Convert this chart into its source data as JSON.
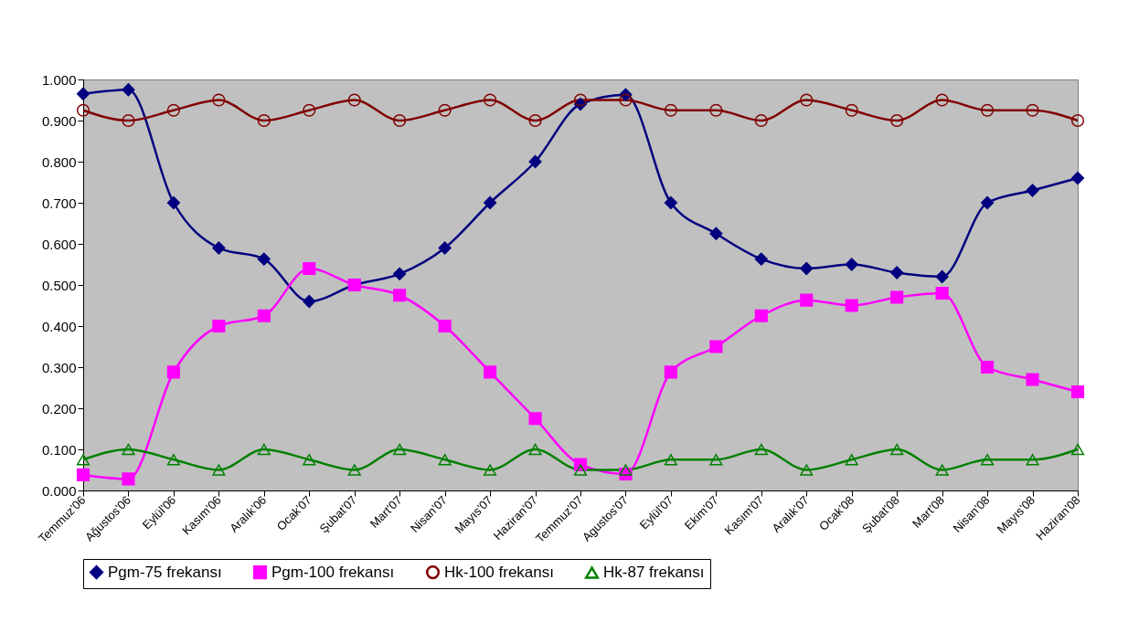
{
  "chart_data": {
    "type": "line",
    "categories": [
      "Temmuz'06",
      "Ağustos'06",
      "Eylül'06",
      "Kasım'06",
      "Aralık'06",
      "Ocak'07",
      "Şubat'07",
      "Mart'07",
      "Nisan'07",
      "Mayıs'07",
      "Haziran'07",
      "Temmuz'07",
      "Agustos'07",
      "Eylül'07",
      "Ekim'07",
      "Kasım'07",
      "Aralık'07",
      "Ocak'08",
      "Şubat'08",
      "Mart'08",
      "Nisan'08",
      "Mayıs'08",
      "Haziran'08"
    ],
    "series": [
      {
        "name": "Pgm-75 frekansı",
        "color": "#000080",
        "marker": "diamond",
        "values": [
          0.965,
          0.975,
          0.7,
          0.59,
          0.563,
          0.46,
          0.5,
          0.527,
          0.59,
          0.7,
          0.8,
          0.94,
          0.963,
          0.7,
          0.625,
          0.563,
          0.54,
          0.55,
          0.53,
          0.52,
          0.7,
          0.73,
          0.76
        ]
      },
      {
        "name": "Pgm-100 frekansı",
        "color": "#ff00ff",
        "marker": "square",
        "values": [
          0.038,
          0.028,
          0.288,
          0.4,
          0.425,
          0.54,
          0.5,
          0.475,
          0.4,
          0.288,
          0.175,
          0.063,
          0.04,
          0.288,
          0.35,
          0.425,
          0.463,
          0.45,
          0.47,
          0.48,
          0.3,
          0.27,
          0.24
        ]
      },
      {
        "name": "Hk-100 frekansı",
        "color": "#800000",
        "marker": "circle",
        "values": [
          0.925,
          0.9,
          0.925,
          0.95,
          0.9,
          0.925,
          0.95,
          0.9,
          0.925,
          0.95,
          0.9,
          0.95,
          0.95,
          0.925,
          0.925,
          0.9,
          0.95,
          0.925,
          0.9,
          0.95,
          0.925,
          0.925,
          0.9
        ]
      },
      {
        "name": "Hk-87 frekansı",
        "color": "#008000",
        "marker": "triangle",
        "values": [
          0.075,
          0.1,
          0.075,
          0.05,
          0.1,
          0.075,
          0.05,
          0.1,
          0.075,
          0.05,
          0.1,
          0.05,
          0.05,
          0.075,
          0.075,
          0.1,
          0.05,
          0.075,
          0.1,
          0.05,
          0.075,
          0.075,
          0.1
        ]
      }
    ],
    "ylim": [
      0,
      1
    ],
    "yticks": [
      {
        "value": 0,
        "label": "0.000"
      },
      {
        "value": 0.1,
        "label": "0.100"
      },
      {
        "value": 0.2,
        "label": "0.200"
      },
      {
        "value": 0.3,
        "label": "0.300"
      },
      {
        "value": 0.4,
        "label": "0.400"
      },
      {
        "value": 0.5,
        "label": "0.500"
      },
      {
        "value": 0.6,
        "label": "0.600"
      },
      {
        "value": 0.7,
        "label": "0.700"
      },
      {
        "value": 0.8,
        "label": "0.800"
      },
      {
        "value": 0.9,
        "label": "0.900"
      },
      {
        "value": 1,
        "label": "1.000"
      }
    ],
    "grid": false,
    "legend": "bottom",
    "line_style": "solid"
  }
}
